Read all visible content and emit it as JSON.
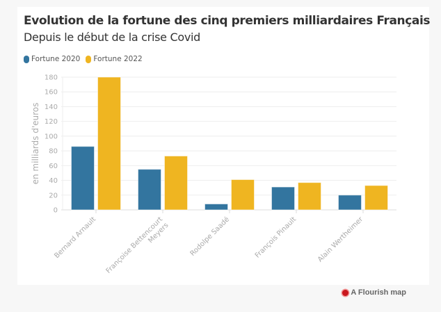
{
  "chart_data": {
    "type": "bar",
    "title": "Evolution de la fortune des cinq premiers milliardaires Français",
    "subtitle": "Depuis le début de la crise Covid",
    "ylabel": "en milliards d'euros",
    "xlabel": "",
    "ylim": [
      0,
      180
    ],
    "yticks": [
      0,
      20,
      40,
      60,
      80,
      100,
      120,
      140,
      160,
      180
    ],
    "grid": true,
    "legend_position": "top-left",
    "categories": [
      "Bernard Arnault",
      "Françoise Bettencourt Meyers",
      "Rodolpe Saadé",
      "François Pinault",
      "Alain Wertheimer"
    ],
    "series": [
      {
        "name": "Fortune 2020",
        "color": "#33759f",
        "values": [
          86,
          55,
          8,
          31,
          20
        ]
      },
      {
        "name": "Fortune 2022",
        "color": "#efb521",
        "values": [
          180,
          73,
          41,
          37,
          33
        ]
      }
    ]
  },
  "credit": {
    "label": "A Flourish map",
    "icon": "flourish-logo-icon"
  }
}
